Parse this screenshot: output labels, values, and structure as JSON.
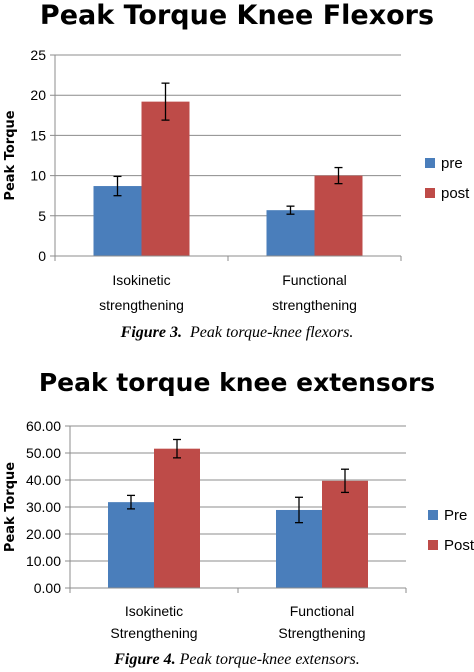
{
  "charts": [
    {
      "caption_bold": "Figure 3.",
      "caption_italic": "Peak torque-knee flexors."
    },
    {
      "caption_bold": "Figure 4.",
      "caption_italic": "Peak torque-knee extensors."
    }
  ],
  "chart_data": [
    {
      "type": "bar",
      "title": "Peak Torque Knee Flexors",
      "ylabel": "Peak Torque",
      "xlabel": "",
      "ylim": [
        0,
        25
      ],
      "yticks": [
        "0",
        "5",
        "10",
        "15",
        "20",
        "25"
      ],
      "categories": [
        [
          "Isokinetic",
          "strengthening"
        ],
        [
          "Functional",
          "strengthening"
        ]
      ],
      "series": [
        {
          "name": "pre",
          "color": "#4a7ebb",
          "values": [
            8.7,
            5.7
          ],
          "errors": [
            1.2,
            0.5
          ]
        },
        {
          "name": "post",
          "color": "#be4b48",
          "values": [
            19.2,
            10.0
          ],
          "errors": [
            2.3,
            1.0
          ]
        }
      ],
      "grid": true,
      "legend": "right"
    },
    {
      "type": "bar",
      "title": "Peak torque knee extensors",
      "ylabel": "Peak Torque",
      "xlabel": "",
      "ylim": [
        0,
        60
      ],
      "yticks": [
        "0.00",
        "10.00",
        "20.00",
        "30.00",
        "40.00",
        "50.00",
        "60.00"
      ],
      "categories": [
        [
          "Isokinetic",
          "Strengthening"
        ],
        [
          "Functional",
          "Strengthening"
        ]
      ],
      "series": [
        {
          "name": "Pre",
          "color": "#4a7ebb",
          "values": [
            31.8,
            28.9
          ],
          "errors": [
            2.5,
            4.7
          ]
        },
        {
          "name": "Post",
          "color": "#be4b48",
          "values": [
            51.6,
            39.7
          ],
          "errors": [
            3.4,
            4.3
          ]
        }
      ],
      "grid": true,
      "legend": "right"
    }
  ]
}
